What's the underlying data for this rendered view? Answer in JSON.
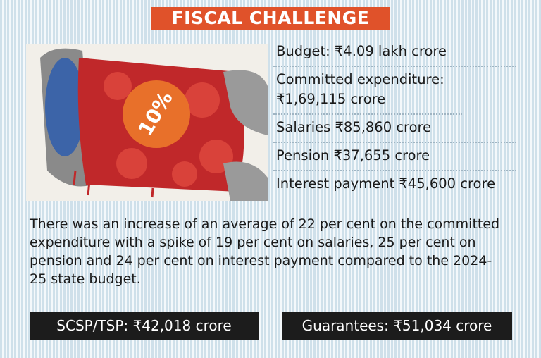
{
  "title": "FISCAL CHALLENGE",
  "illustration_label": "10%",
  "facts": [
    "Budget: ₹4.09 lakh crore",
    "Committed expenditure: ₹1,69,115 crore",
    "Salaries ₹85,860 crore",
    "Pension ₹37,655 crore",
    "Interest payment ₹45,600 crore"
  ],
  "summary": "There was an increase of an average of 22 per cent on the committed expenditure with a spike of 19 per cent on salaries, 25 per cent on pension and 24 per cent on interest payment compared to the 2024-25 state budget.",
  "boxes": [
    "SCSP/TSP: ₹42,018 crore",
    "Guarantees: ₹51,034 crore"
  ]
}
